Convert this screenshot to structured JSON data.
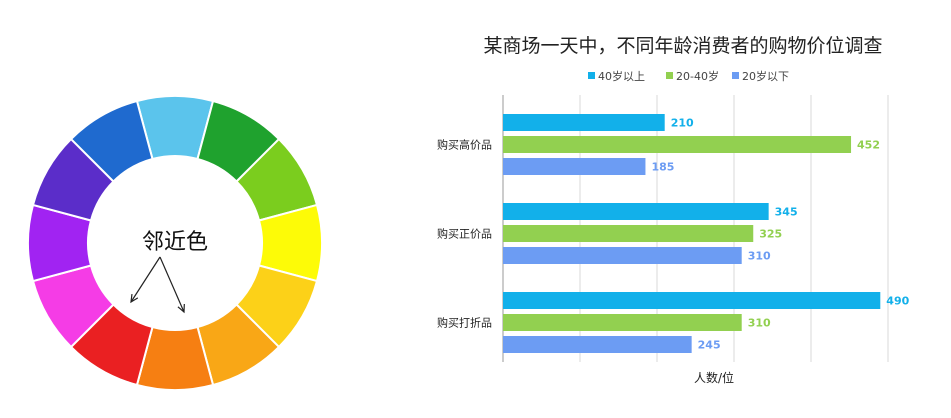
{
  "color_wheel": {
    "label": "邻近色",
    "segment_colors": [
      "#5BC4EC",
      "#1FA22E",
      "#7BCD1E",
      "#FDFB07",
      "#FCD118",
      "#F9A716",
      "#F67F12",
      "#EA2022",
      "#F53CE6",
      "#A123F2",
      "#5B2DC9",
      "#1F6ACF"
    ]
  },
  "chart_data": {
    "type": "bar",
    "orientation": "horizontal",
    "title": "某商场一天中，不同年龄消费者的购物价位调查",
    "xlabel": "人数/位",
    "ylabel": "",
    "xlim": [
      0,
      600
    ],
    "grid": true,
    "legend_position": "top",
    "categories": [
      "购买高价品",
      "购买正价品",
      "购买打折品"
    ],
    "series": [
      {
        "name": "40岁以上",
        "color": "#12B0EA",
        "values": [
          210,
          345,
          490
        ]
      },
      {
        "name": "20-40岁",
        "color": "#92D050",
        "values": [
          452,
          325,
          310
        ]
      },
      {
        "name": "20岁以下",
        "color": "#6C9CF3",
        "values": [
          185,
          310,
          245
        ]
      }
    ]
  }
}
